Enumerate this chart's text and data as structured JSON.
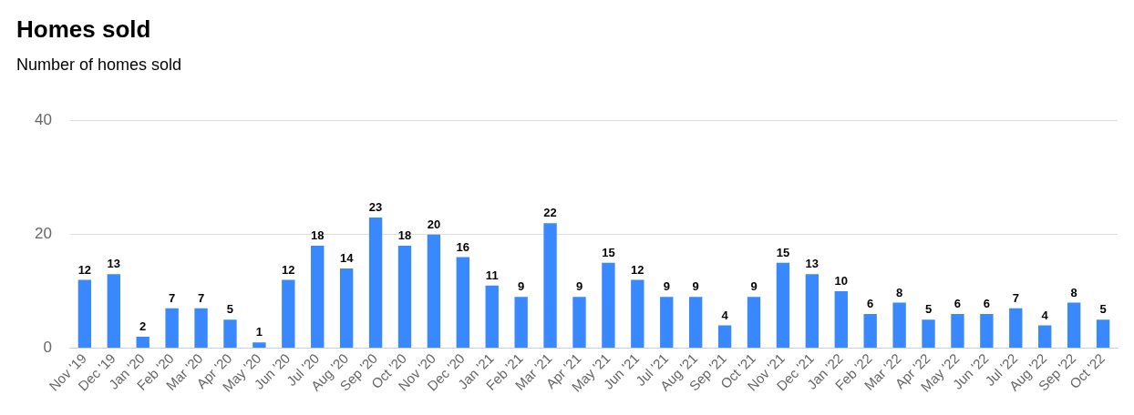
{
  "chart_data": {
    "type": "bar",
    "title": "Homes sold",
    "subtitle": "Number of homes sold",
    "categories": [
      "Nov '19",
      "Dec '19",
      "Jan '20",
      "Feb '20",
      "Mar '20",
      "Apr '20",
      "May '20",
      "Jun '20",
      "Jul '20",
      "Aug '20",
      "Sep '20",
      "Oct '20",
      "Nov '20",
      "Dec '20",
      "Jan '21",
      "Feb '21",
      "Mar '21",
      "Apr '21",
      "May '21",
      "Jun '21",
      "Jul '21",
      "Aug '21",
      "Sep '21",
      "Oct '21",
      "Nov '21",
      "Dec '21",
      "Jan '22",
      "Feb '22",
      "Mar '22",
      "Apr '22",
      "May '22",
      "Jun '22",
      "Jul '22",
      "Aug '22",
      "Sep '22",
      "Oct '22"
    ],
    "values": [
      12,
      13,
      2,
      7,
      7,
      5,
      1,
      12,
      18,
      14,
      23,
      18,
      20,
      16,
      11,
      9,
      22,
      9,
      15,
      12,
      9,
      9,
      4,
      9,
      15,
      13,
      10,
      6,
      8,
      5,
      6,
      6,
      7,
      4,
      8,
      5
    ],
    "color": "#3a88fe",
    "ylim": [
      0,
      40
    ],
    "yticks": [
      0,
      20,
      40
    ],
    "grid": "y",
    "data_labels": true,
    "legend": false
  }
}
